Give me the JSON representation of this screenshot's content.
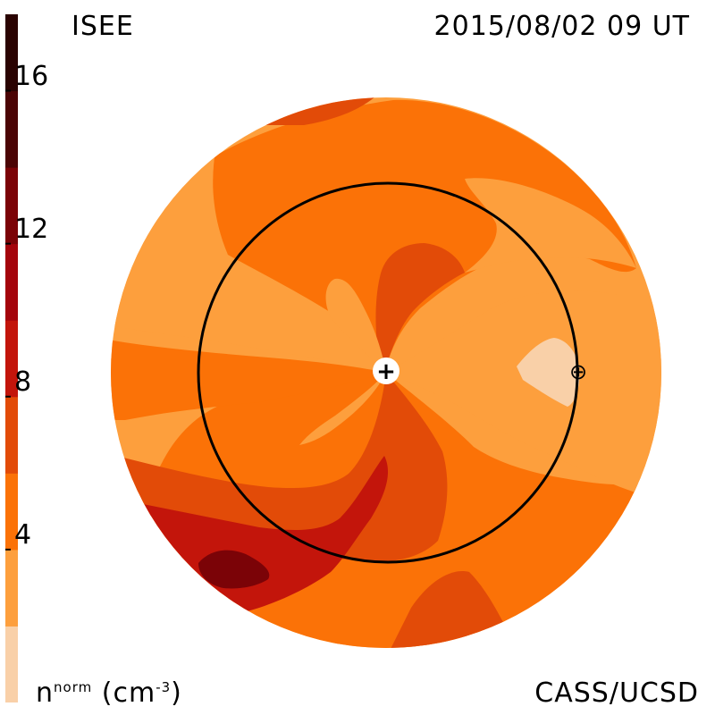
{
  "header": {
    "observatory": "ISEE",
    "datetime": "2015/08/02 09 UT"
  },
  "footer": {
    "credit": "CASS/UCSD"
  },
  "colorbar": {
    "label_main": "n",
    "label_sup": "norm",
    "label_unit_open": "(cm",
    "label_unit_sup": "-3",
    "label_unit_close": ")",
    "range": [
      0,
      18
    ],
    "ticks": [
      "4",
      "8",
      "12",
      "16"
    ],
    "tick_values": [
      4,
      8,
      12,
      16
    ],
    "colors": [
      "#f9d0a8",
      "#fd9f3d",
      "#fb7207",
      "#e24b08",
      "#c3150b",
      "#a4040c",
      "#7b0307",
      "#4b0405",
      "#2a0302"
    ]
  },
  "map": {
    "sun_symbol": "+",
    "earth_symbol": "⊕",
    "colors": {
      "level1": "#f9d0a8",
      "level2": "#fd9f3d",
      "level3": "#fb7207",
      "level4": "#e24b08",
      "level5": "#c3150b",
      "level6": "#7b0307",
      "orbit": "#000000"
    }
  }
}
